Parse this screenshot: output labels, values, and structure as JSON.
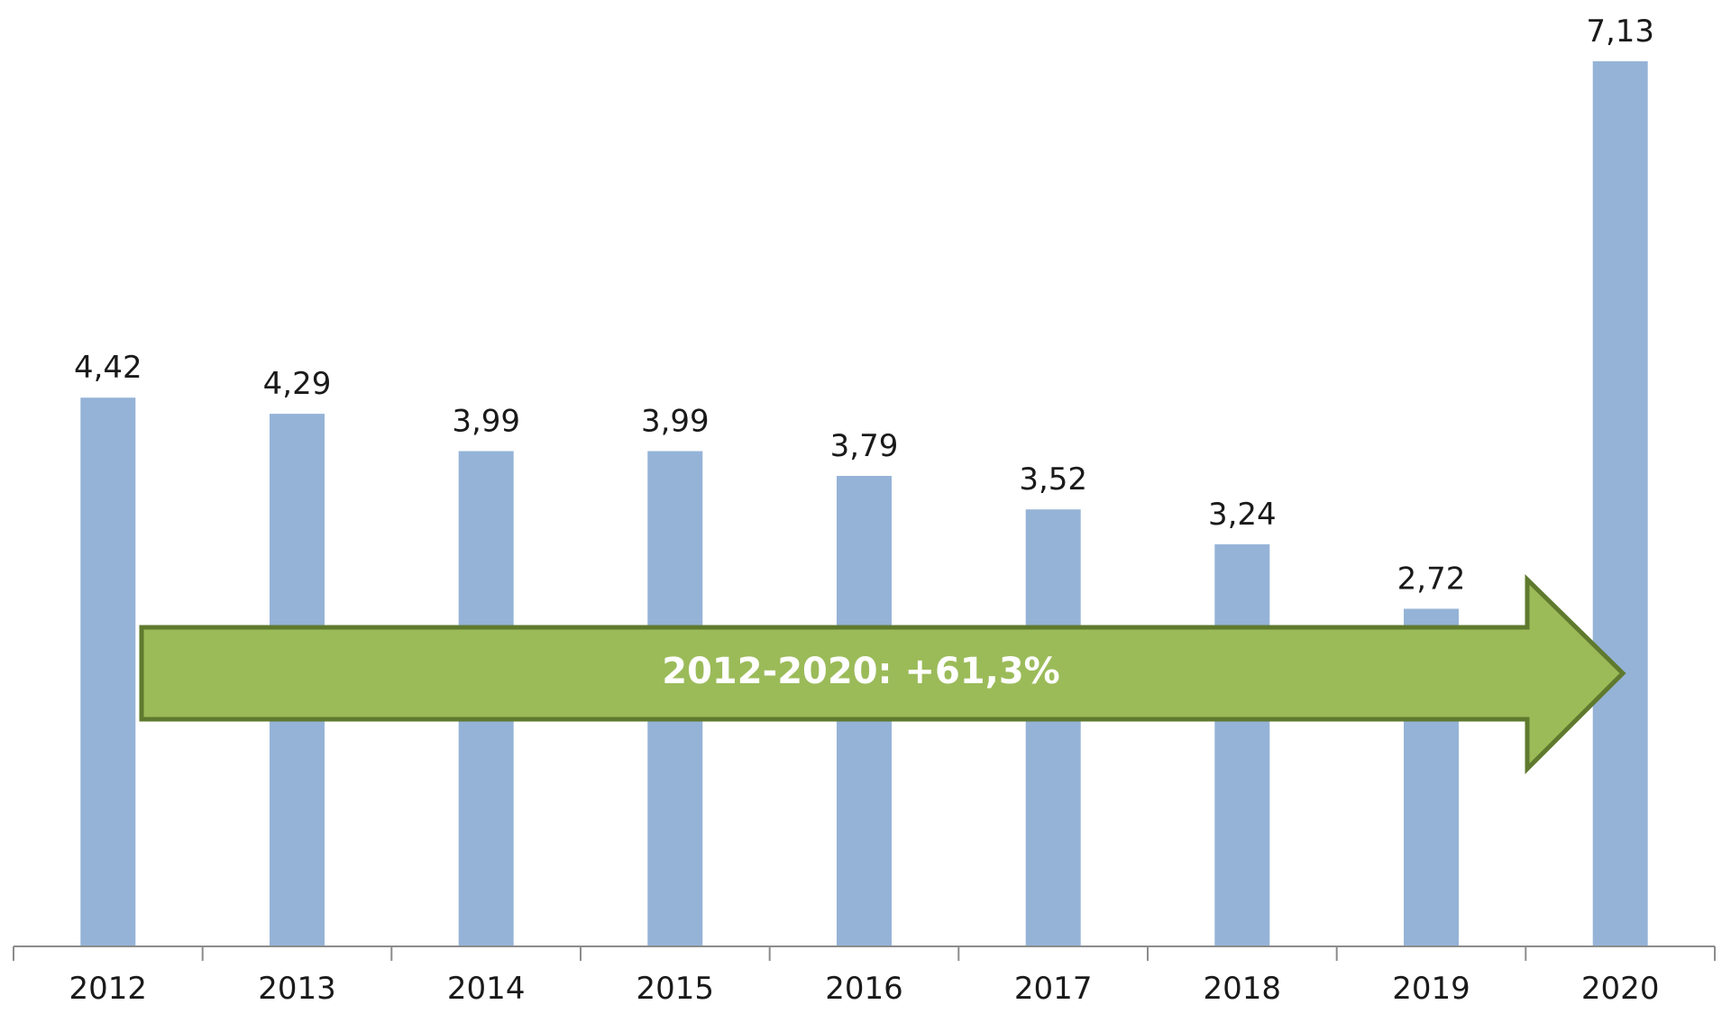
{
  "chart_data": {
    "type": "bar",
    "title": "",
    "xlabel": "",
    "ylabel": "",
    "categories": [
      "2012",
      "2013",
      "2014",
      "2015",
      "2016",
      "2017",
      "2018",
      "2019",
      "2020"
    ],
    "values": [
      4.42,
      4.29,
      3.99,
      3.99,
      3.79,
      3.52,
      3.24,
      2.72,
      7.13
    ],
    "value_labels": [
      "4,42",
      "4,29",
      "3,99",
      "3,99",
      "3,79",
      "3,52",
      "3,24",
      "2,72",
      "7,13"
    ],
    "ylim": [
      0,
      7.13
    ],
    "grid": false,
    "legend": "none",
    "bar_color": "#95B3D7",
    "axis_color": "#8C8C8C",
    "annotation": {
      "text": "2012-2020: +61,3%",
      "fill": "#9BBB59",
      "stroke": "#5F7A2E"
    }
  }
}
